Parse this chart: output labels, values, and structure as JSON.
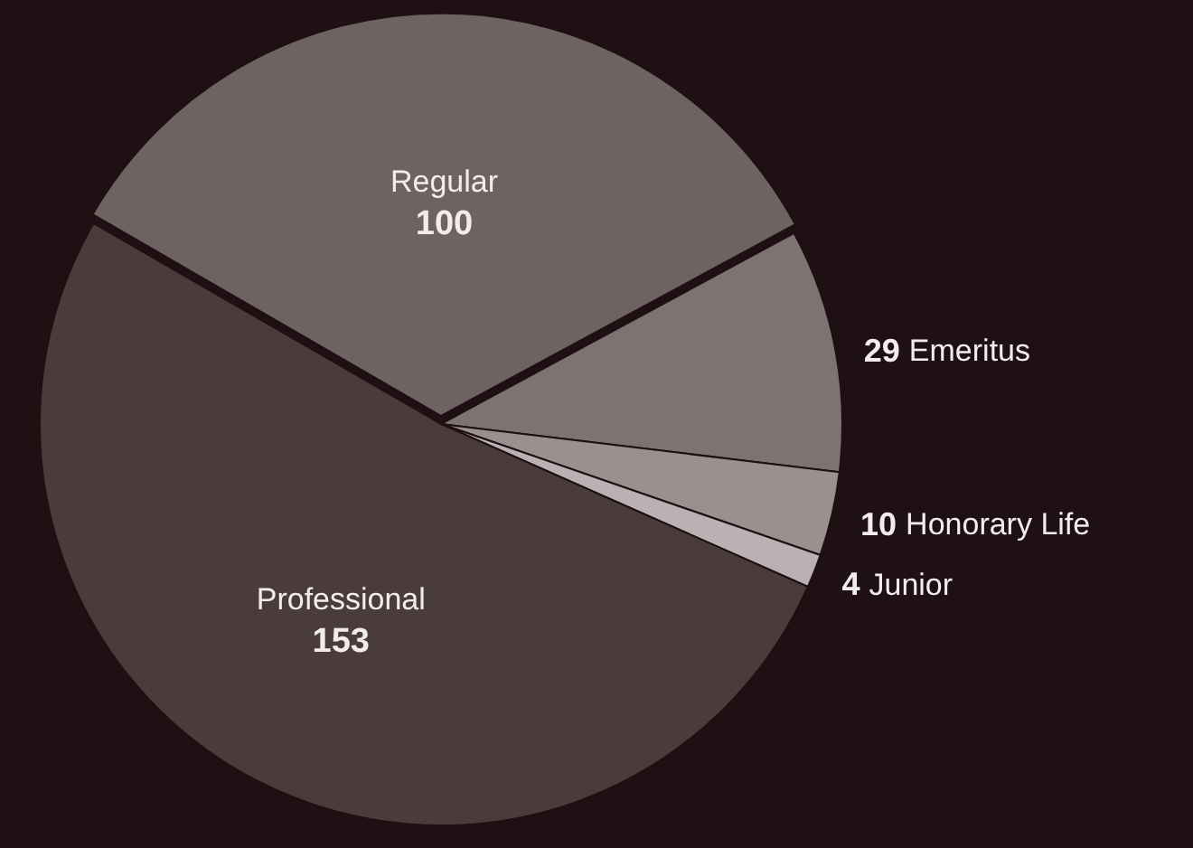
{
  "chart_data": {
    "type": "pie",
    "categories": [
      "Regular",
      "Emeritus",
      "Honorary Life",
      "Junior",
      "Professional"
    ],
    "values": [
      100,
      29,
      10,
      4,
      153
    ],
    "colors": [
      "#6e6262",
      "#7e7373",
      "#9a9090",
      "#bab2b2",
      "#4b3c3c"
    ],
    "data_labels": true,
    "legend": false
  }
}
